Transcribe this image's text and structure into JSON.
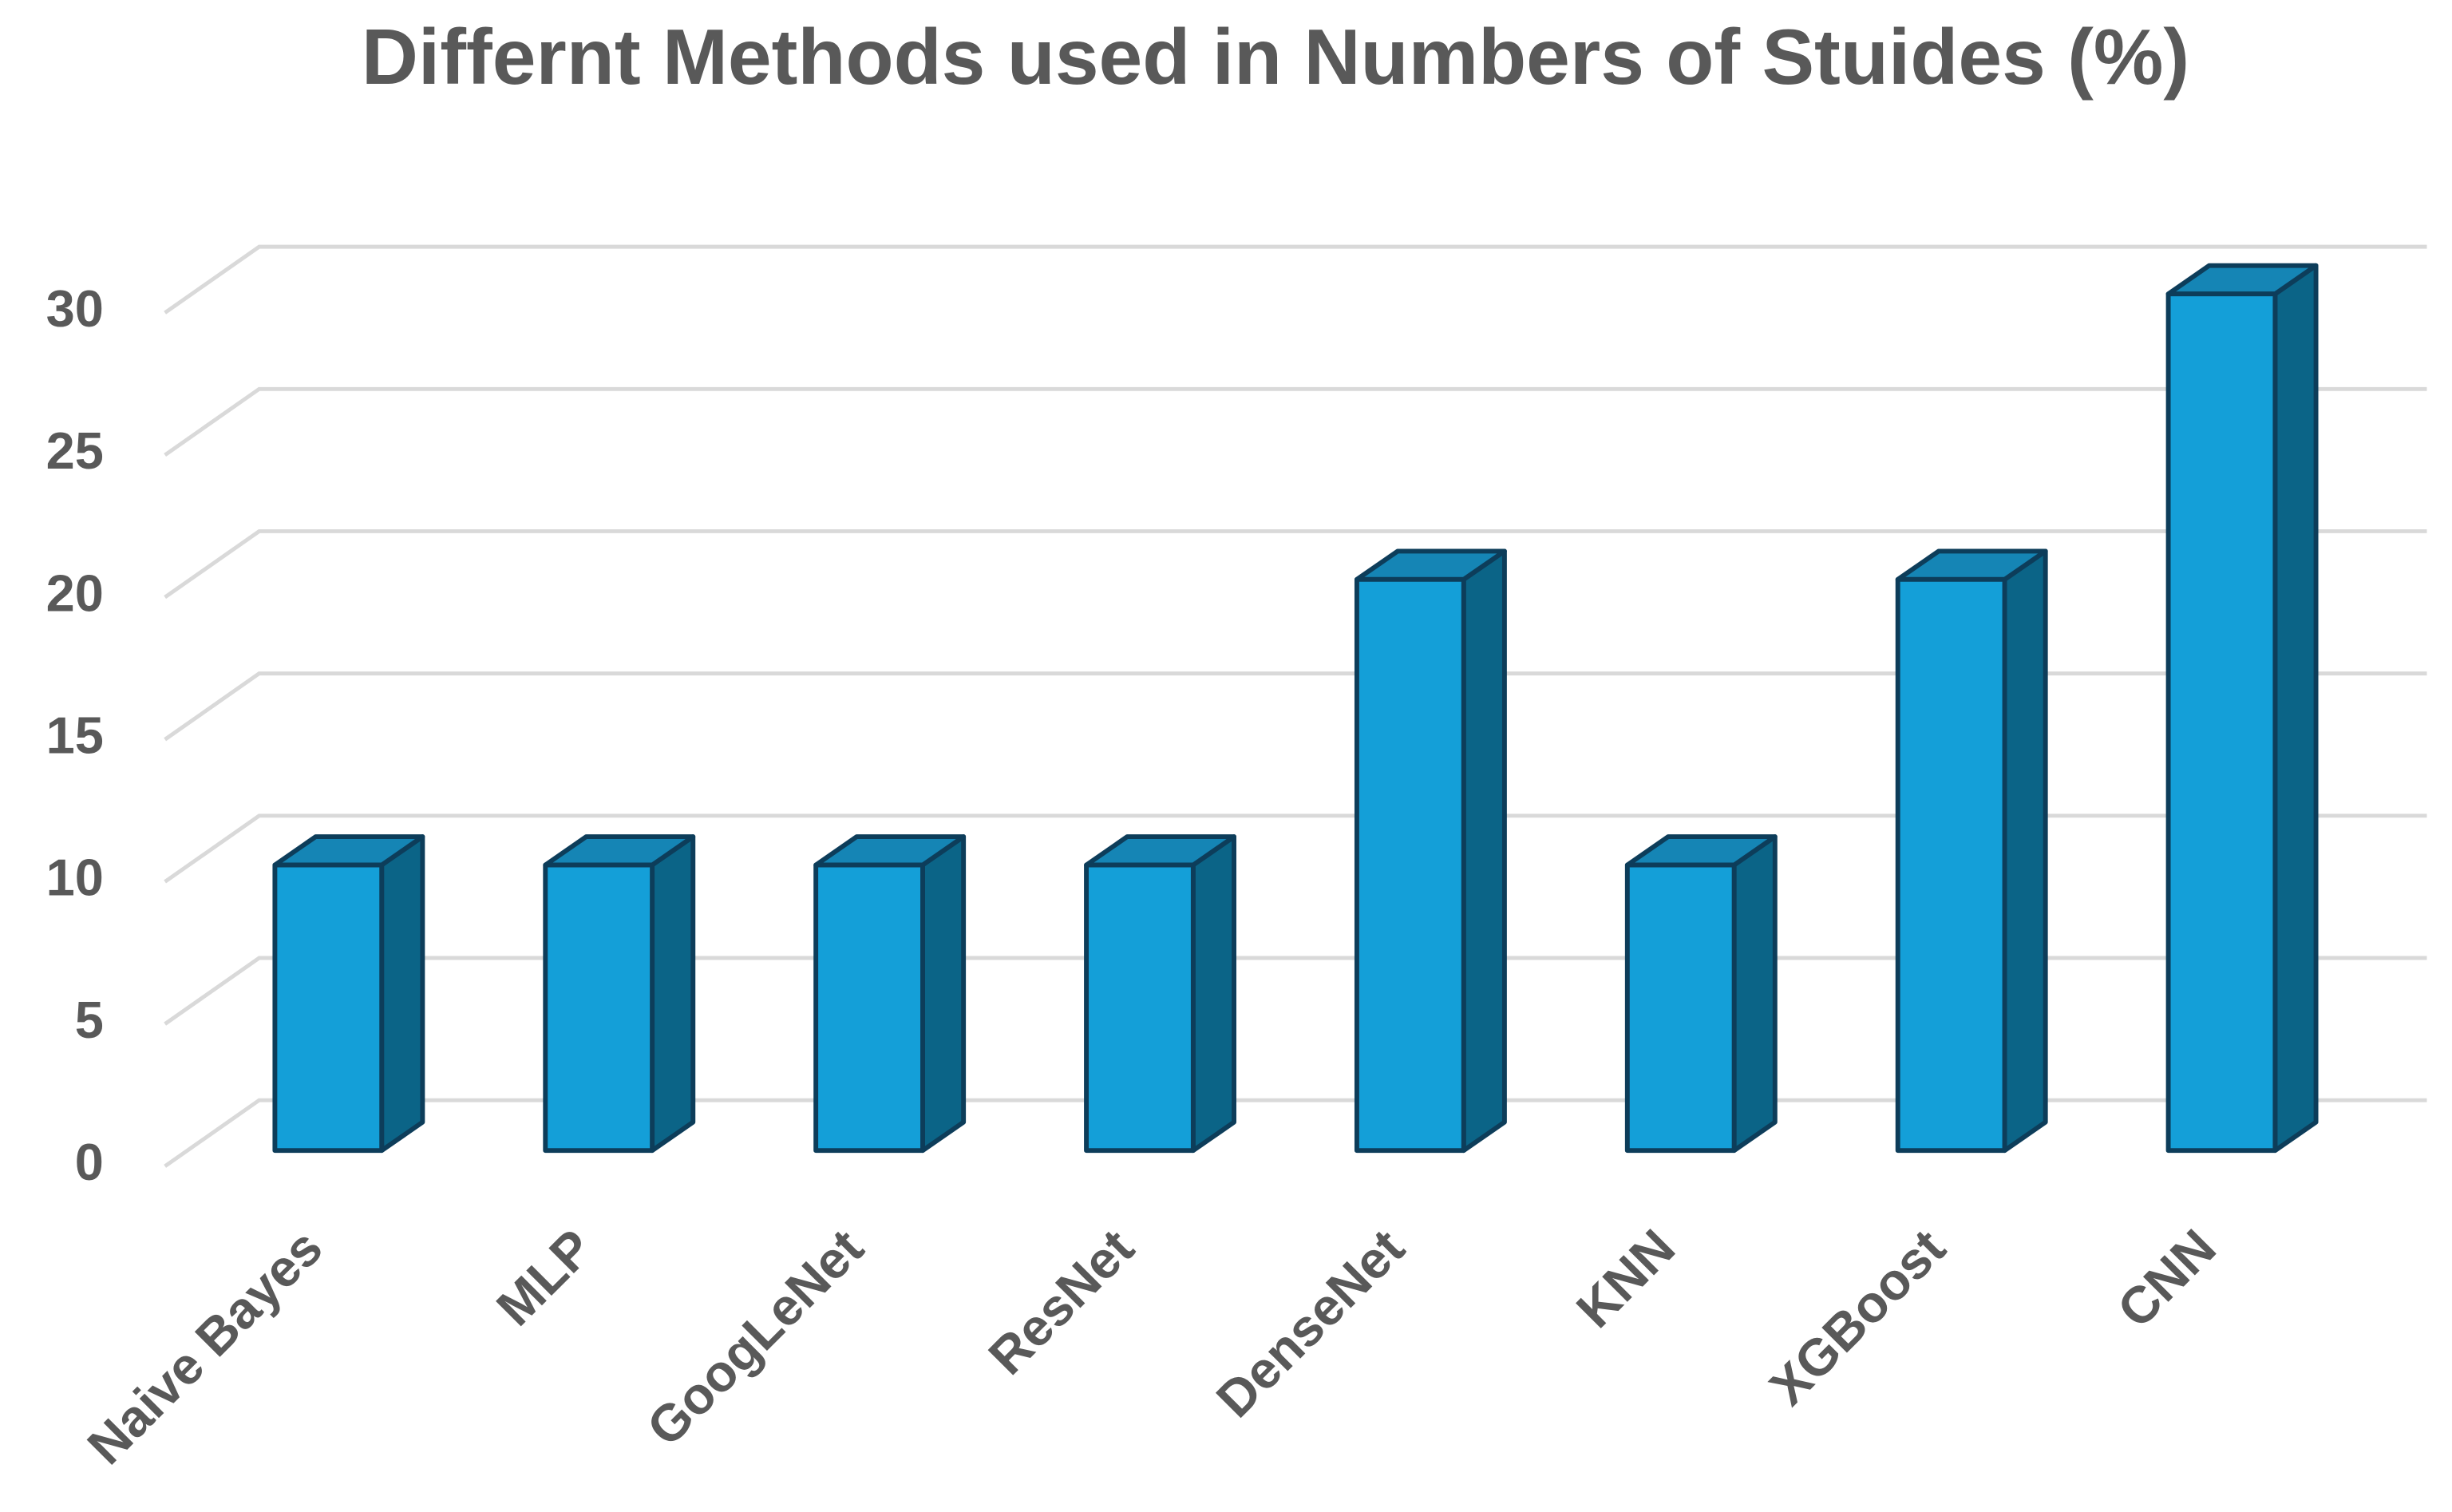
{
  "chart_data": {
    "type": "bar3d",
    "title": "Differnt Methods used in Numbers of Stuides (%)",
    "categories": [
      "Naive Bayes",
      "MLP",
      "GoogLeNet",
      "ResNet",
      "DenseNet",
      "KNN",
      "XGBoost",
      "CNN"
    ],
    "values": [
      10,
      10,
      10,
      10,
      20,
      10,
      20,
      30
    ],
    "color": "#149fd8",
    "ylim": [
      0,
      30
    ],
    "yticks": [
      0,
      5,
      10,
      15,
      20,
      25,
      30
    ],
    "grid": true
  }
}
